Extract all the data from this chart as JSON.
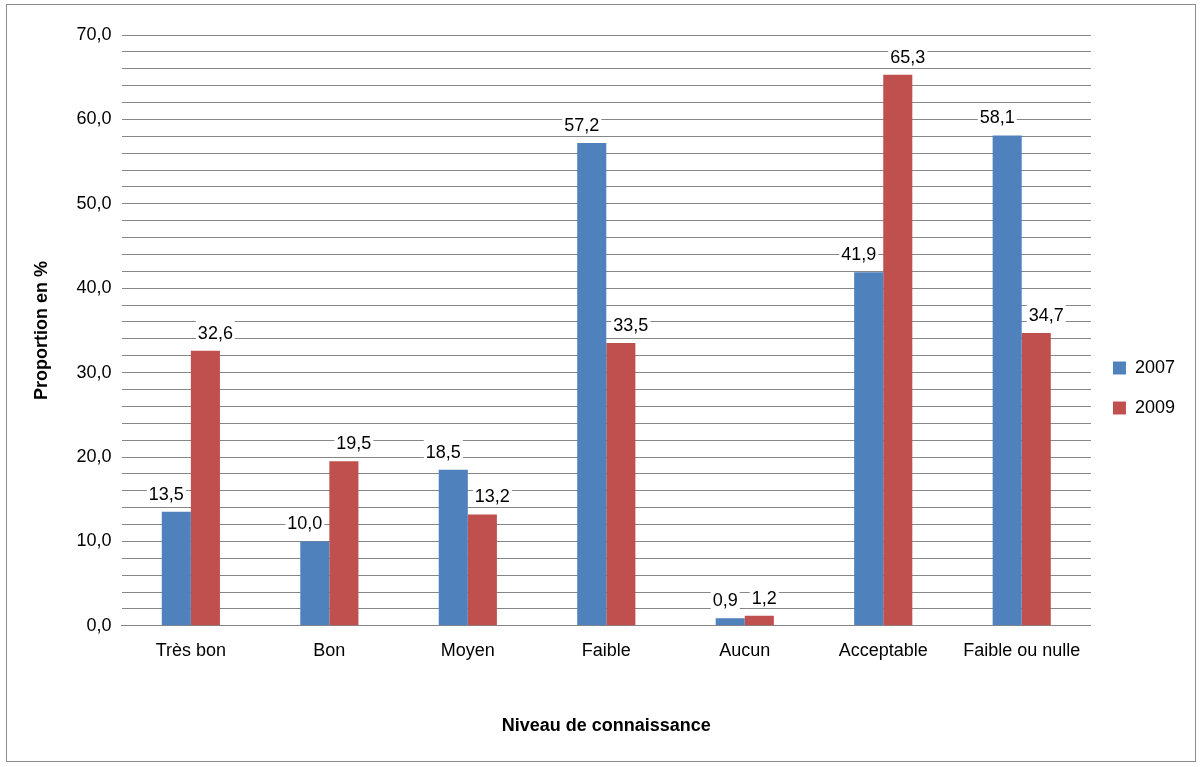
{
  "chart_data": {
    "type": "bar",
    "xlabel": "Niveau de connaissance",
    "ylabel": "Proportion en %",
    "categories": [
      "Très bon",
      "Bon",
      "Moyen",
      "Faible",
      "Aucun",
      "Acceptable",
      "Faible ou nulle"
    ],
    "series": [
      {
        "name": "2007",
        "color": "#4f81bd",
        "values": [
          13.5,
          10.0,
          18.5,
          57.2,
          0.9,
          41.9,
          58.1
        ],
        "value_labels": [
          "13,5",
          "10,0",
          "18,5",
          "57,2",
          "0,9",
          "41,9",
          "58,1"
        ]
      },
      {
        "name": "2009",
        "color": "#c0504d",
        "values": [
          32.6,
          19.5,
          13.2,
          33.5,
          1.2,
          65.3,
          34.7
        ],
        "value_labels": [
          "32,6",
          "19,5",
          "13,2",
          "33,5",
          "1,2",
          "65,3",
          "34,7"
        ]
      }
    ],
    "ylim": [
      0,
      70
    ],
    "yticks": [
      {
        "value": 0,
        "label": "0,0"
      },
      {
        "value": 2,
        "label": null
      },
      {
        "value": 4,
        "label": null
      },
      {
        "value": 6,
        "label": null
      },
      {
        "value": 8,
        "label": null
      },
      {
        "value": 10,
        "label": "10,0"
      },
      {
        "value": 12,
        "label": null
      },
      {
        "value": 14,
        "label": null
      },
      {
        "value": 16,
        "label": null
      },
      {
        "value": 18,
        "label": null
      },
      {
        "value": 20,
        "label": "20,0"
      },
      {
        "value": 22,
        "label": null
      },
      {
        "value": 24,
        "label": null
      },
      {
        "value": 26,
        "label": null
      },
      {
        "value": 28,
        "label": null
      },
      {
        "value": 30,
        "label": "30,0"
      },
      {
        "value": 32,
        "label": null
      },
      {
        "value": 34,
        "label": null
      },
      {
        "value": 36,
        "label": null
      },
      {
        "value": 38,
        "label": null
      },
      {
        "value": 40,
        "label": "40,0"
      },
      {
        "value": 42,
        "label": null
      },
      {
        "value": 44,
        "label": null
      },
      {
        "value": 46,
        "label": null
      },
      {
        "value": 48,
        "label": null
      },
      {
        "value": 50,
        "label": "50,0"
      },
      {
        "value": 52,
        "label": null
      },
      {
        "value": 54,
        "label": null
      },
      {
        "value": 56,
        "label": null
      },
      {
        "value": 58,
        "label": null
      },
      {
        "value": 60,
        "label": "60,0"
      },
      {
        "value": 62,
        "label": null
      },
      {
        "value": 64,
        "label": null
      },
      {
        "value": 66,
        "label": null
      },
      {
        "value": 68,
        "label": null
      },
      {
        "value": 70,
        "label": "70,0"
      }
    ],
    "grid": "y",
    "legend": "right"
  }
}
